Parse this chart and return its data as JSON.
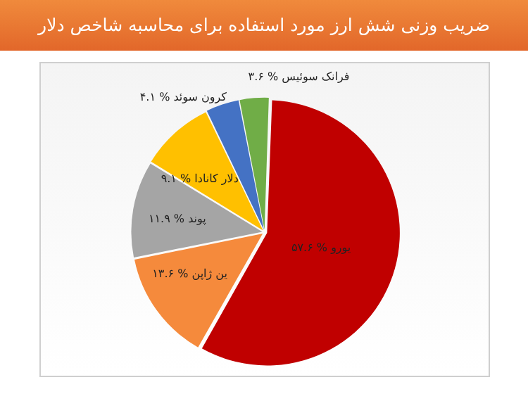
{
  "chart_data": {
    "type": "pie",
    "title": "ضریب وزنی شش ارز مورد استفاده برای محاسبه شاخص دلار",
    "categories": [
      "یورو",
      "ین ژاپن",
      "پوند",
      "دلار کانادا",
      "کرون سوئد",
      "فرانک سوئیس"
    ],
    "values": [
      57.6,
      13.6,
      11.9,
      9.1,
      4.1,
      3.6
    ],
    "value_labels": [
      "% ۵۷.۶",
      "% ۱۳.۶",
      "% ۱۱.۹",
      "% ۹.۱",
      "% ۴.۱",
      "% ۳.۶"
    ],
    "colors": [
      "#c00000",
      "#f58a3c",
      "#a5a5a5",
      "#ffc000",
      "#4472c4",
      "#70ad47"
    ],
    "legend": false
  }
}
